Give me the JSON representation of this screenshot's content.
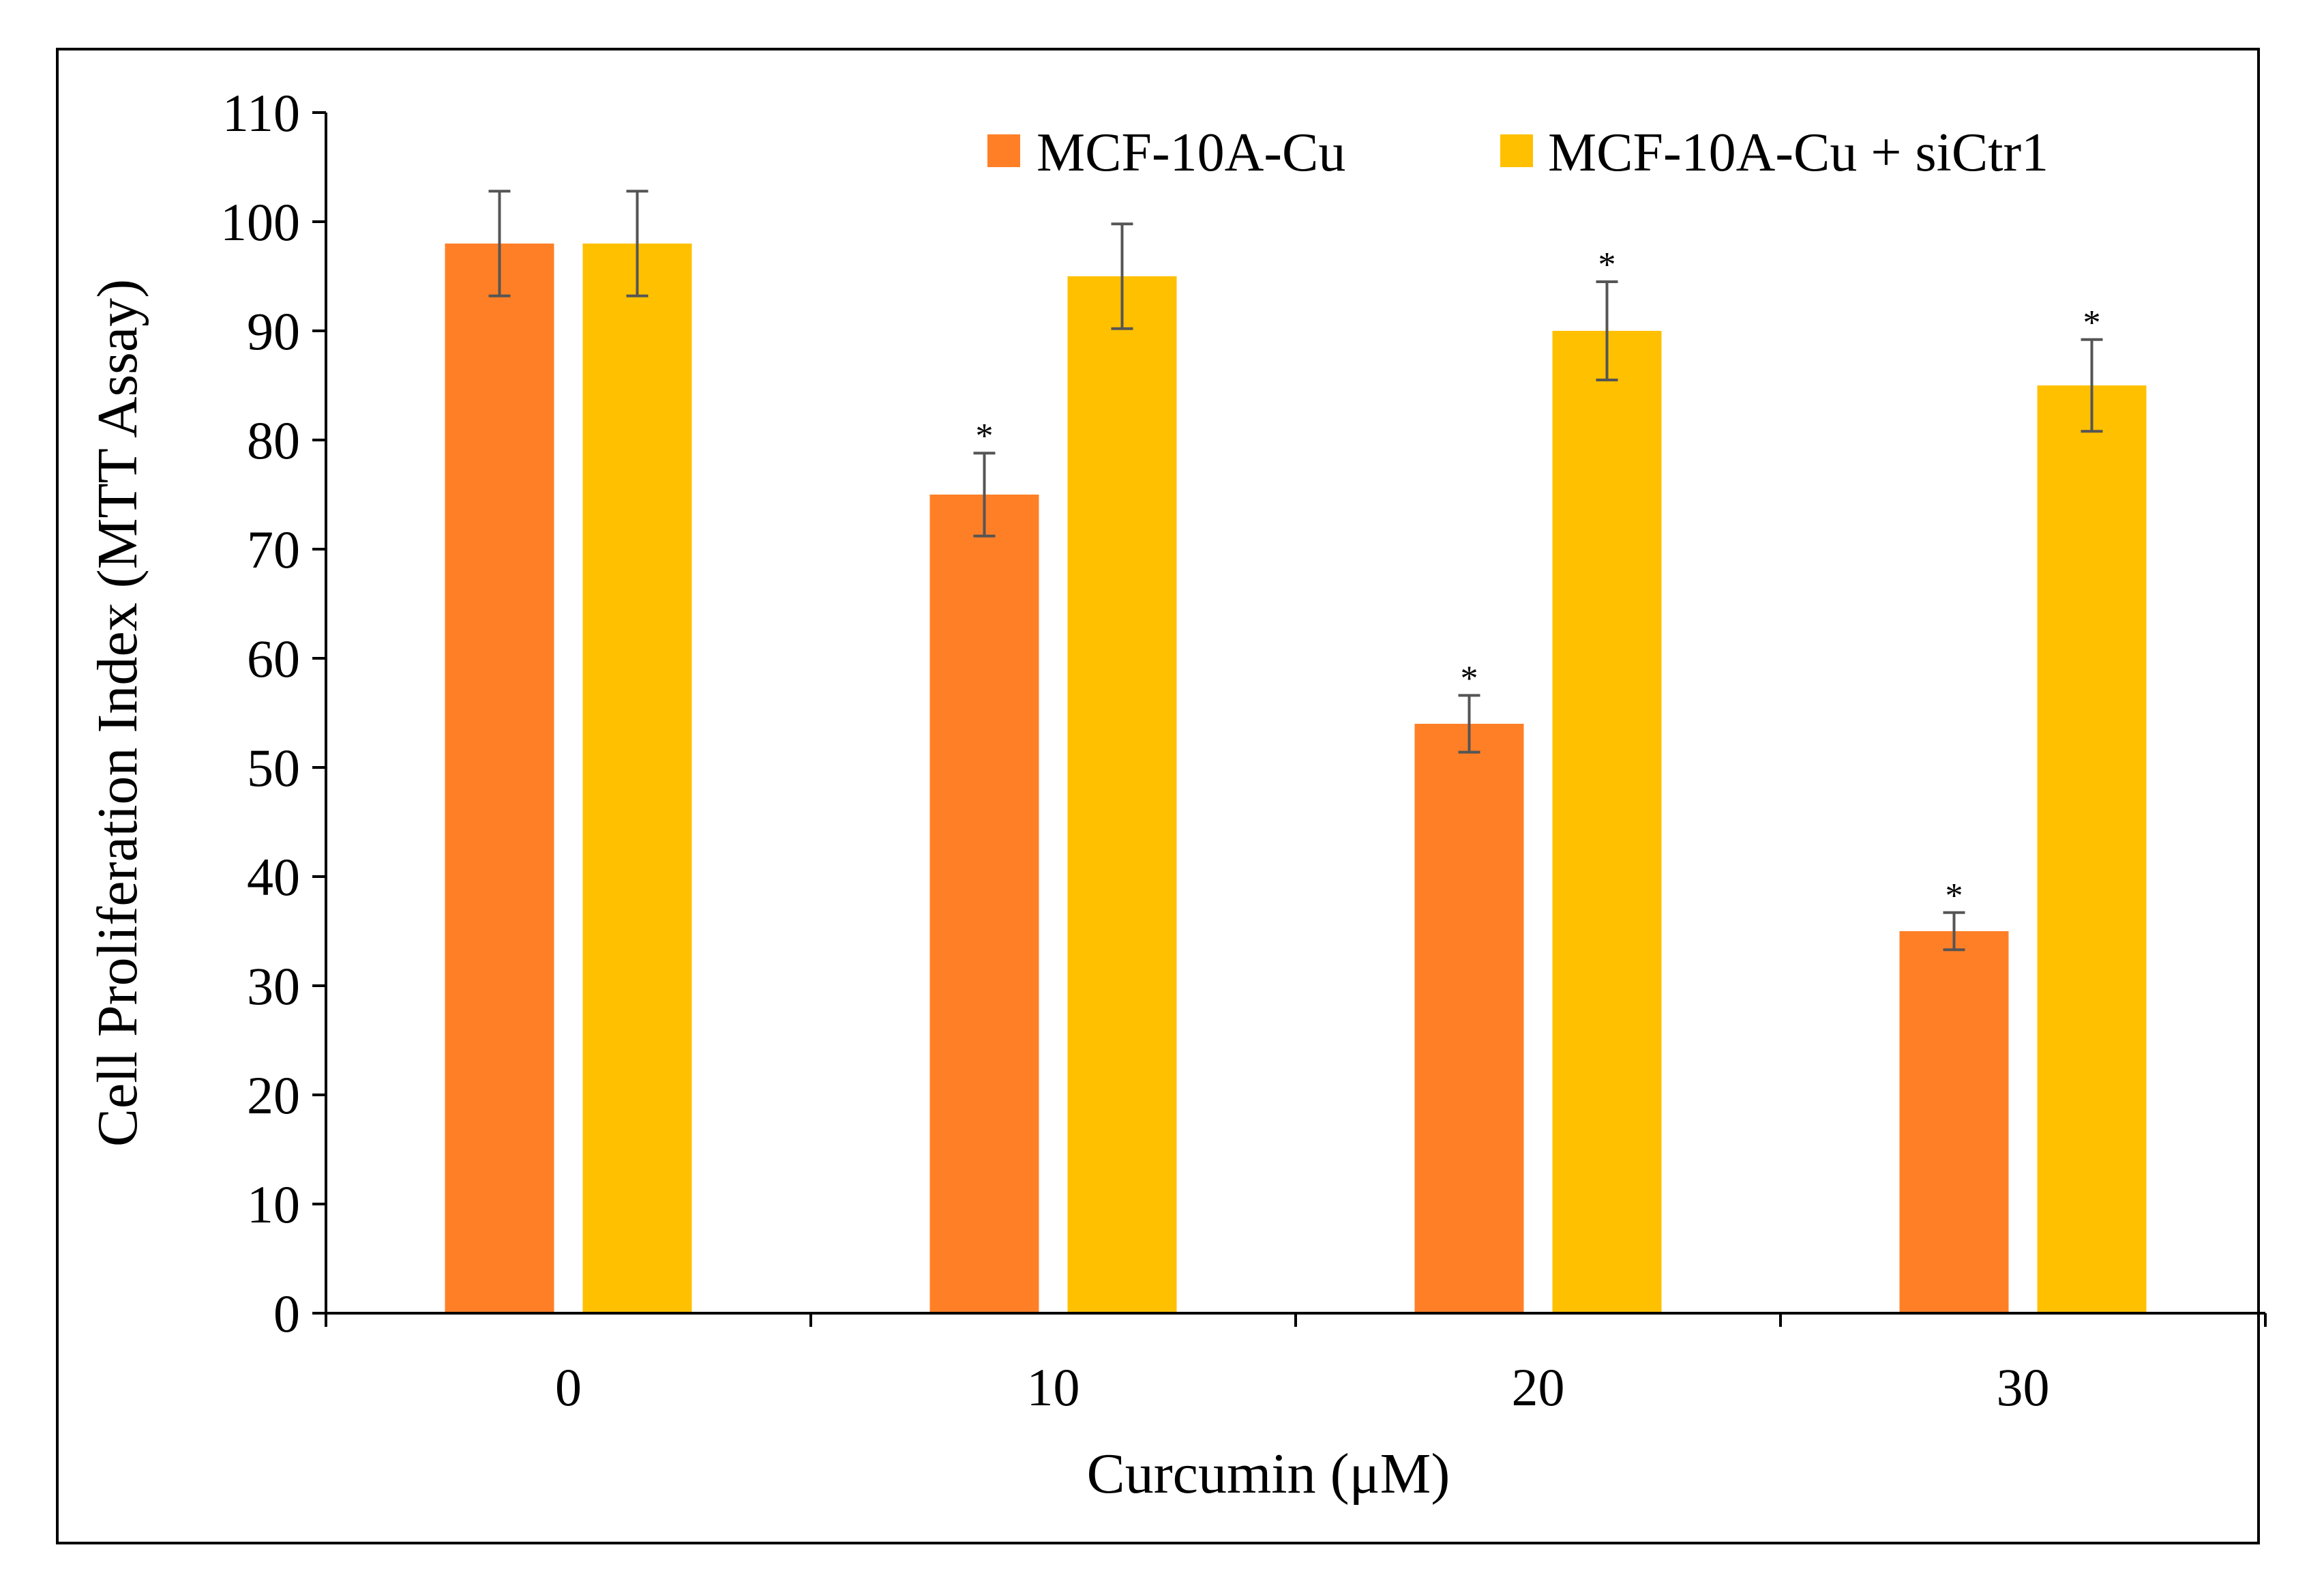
{
  "chart_data": {
    "type": "bar",
    "categories": [
      "0",
      "10",
      "20",
      "30"
    ],
    "series": [
      {
        "name": "MCF-10A-Cu",
        "color": "#FF7F27",
        "values": [
          98,
          75,
          54,
          35
        ],
        "errors": [
          4.8,
          3.8,
          2.6,
          1.7
        ],
        "significance": [
          "",
          "*",
          "*",
          "*"
        ]
      },
      {
        "name": "MCF-10A-Cu + siCtr1",
        "color": "#FFC000",
        "values": [
          98,
          95,
          90,
          85
        ],
        "errors": [
          4.8,
          4.8,
          4.5,
          4.2
        ],
        "significance": [
          "",
          "",
          "*",
          "*"
        ]
      }
    ],
    "xlabel": "Curcumin (μM)",
    "ylabel": "Cell Proliferation Index (MTT Assay)",
    "ylim": [
      0,
      110
    ],
    "yticks": [
      "0",
      "10",
      "20",
      "30",
      "40",
      "50",
      "60",
      "70",
      "80",
      "90",
      "100",
      "110"
    ],
    "legend_position": "top-right",
    "grid": false
  }
}
